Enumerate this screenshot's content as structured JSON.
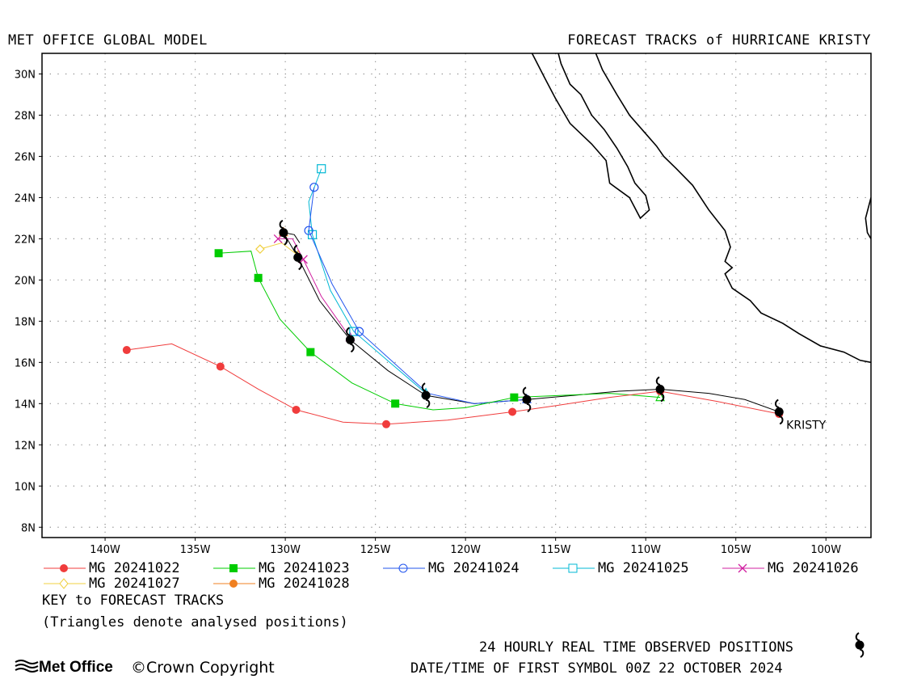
{
  "header": {
    "left": "MET OFFICE GLOBAL MODEL",
    "right": "FORECAST TRACKS of HURRICANE KRISTY"
  },
  "map": {
    "storm_label": "KRISTY",
    "lat_labels": [
      "30N",
      "28N",
      "26N",
      "24N",
      "22N",
      "20N",
      "18N",
      "16N",
      "14N",
      "12N",
      "10N",
      "8N"
    ],
    "lon_labels": [
      "140W",
      "135W",
      "130W",
      "125W",
      "120W",
      "115W",
      "110W",
      "105W",
      "100W"
    ],
    "lat_range": [
      7.5,
      31
    ],
    "lon_range": [
      -143.5,
      -97.5
    ],
    "grid": "dotted",
    "land_color": "#ffffff",
    "coastline_color": "#000000"
  },
  "chart_data": {
    "type": "map_tracks",
    "observed": {
      "name": "24 HOURLY REAL TIME OBSERVED POSITIONS",
      "color": "#000000",
      "points": [
        [
          -102.6,
          13.6
        ],
        [
          -109.2,
          14.7
        ],
        [
          -116.6,
          14.2
        ],
        [
          -122.2,
          14.4
        ],
        [
          -126.4,
          17.1
        ],
        [
          -129.3,
          21.1
        ],
        [
          -130.1,
          22.3
        ]
      ],
      "line": [
        [
          -102.6,
          13.6
        ],
        [
          -104.5,
          14.2
        ],
        [
          -106.5,
          14.5
        ],
        [
          -109.2,
          14.7
        ],
        [
          -111.5,
          14.6
        ],
        [
          -114,
          14.4
        ],
        [
          -116.6,
          14.2
        ],
        [
          -119.5,
          14.0
        ],
        [
          -122.2,
          14.4
        ],
        [
          -124.3,
          15.6
        ],
        [
          -126.4,
          17.1
        ],
        [
          -128.1,
          19.0
        ],
        [
          -129.3,
          21.1
        ],
        [
          -130.1,
          22.3
        ],
        [
          -129.5,
          22.2
        ],
        [
          -129.2,
          21.8
        ]
      ]
    },
    "series": [
      {
        "name": "MG 20241022",
        "color": "#f03c3c",
        "marker": "circle-filled",
        "line": [
          [
            -102.6,
            13.5
          ],
          [
            -106,
            14.1
          ],
          [
            -109.2,
            14.6
          ],
          [
            -112,
            14.3
          ],
          [
            -115,
            13.9
          ],
          [
            -117.4,
            13.6
          ],
          [
            -121,
            13.2
          ],
          [
            -124.4,
            13.0
          ],
          [
            -126.8,
            13.1
          ],
          [
            -129.4,
            13.7
          ],
          [
            -131.5,
            14.7
          ],
          [
            -133.6,
            15.8
          ],
          [
            -136.3,
            16.9
          ],
          [
            -138.8,
            16.6
          ]
        ],
        "markers": [
          [
            -102.6,
            13.5
          ],
          [
            -109.2,
            14.6
          ],
          [
            -117.4,
            13.6
          ],
          [
            -124.4,
            13.0
          ],
          [
            -129.4,
            13.7
          ],
          [
            -133.6,
            15.8
          ],
          [
            -138.8,
            16.6
          ]
        ]
      },
      {
        "name": "MG 20241023",
        "color": "#00cc00",
        "marker": "square-filled",
        "line": [
          [
            -109.2,
            14.3
          ],
          [
            -112,
            14.5
          ],
          [
            -117.3,
            14.3
          ],
          [
            -120,
            13.8
          ],
          [
            -121.8,
            13.7
          ],
          [
            -123.9,
            14.0
          ],
          [
            -126.3,
            15.0
          ],
          [
            -128.6,
            16.5
          ],
          [
            -130.3,
            18.1
          ],
          [
            -131.5,
            20.1
          ],
          [
            -131.9,
            21.4
          ],
          [
            -133.7,
            21.3
          ]
        ],
        "markers": [
          [
            -117.3,
            14.3
          ],
          [
            -123.9,
            14.0
          ],
          [
            -128.6,
            16.5
          ],
          [
            -131.5,
            20.1
          ],
          [
            -133.7,
            21.3
          ]
        ],
        "analysed": [
          [
            -109.2,
            14.3
          ]
        ]
      },
      {
        "name": "MG 20241024",
        "color": "#2255ee",
        "marker": "circle-open",
        "line": [
          [
            -116.6,
            14.2
          ],
          [
            -119.5,
            14.0
          ],
          [
            -122.1,
            14.5
          ],
          [
            -124,
            16
          ],
          [
            -125.9,
            17.5
          ],
          [
            -127.4,
            19.8
          ],
          [
            -128.7,
            22.4
          ],
          [
            -128.4,
            24.5
          ]
        ],
        "markers": [
          [
            -125.9,
            17.5
          ],
          [
            -128.7,
            22.4
          ],
          [
            -128.4,
            24.5
          ]
        ],
        "analysed": [
          [
            -116.6,
            14.2
          ]
        ]
      },
      {
        "name": "MG 20241025",
        "color": "#00b8d4",
        "marker": "square-open",
        "line": [
          [
            -122.2,
            14.5
          ],
          [
            -124.2,
            16.0
          ],
          [
            -126.2,
            17.5
          ],
          [
            -127.5,
            19.5
          ],
          [
            -128.5,
            22.2
          ],
          [
            -128.7,
            23.8
          ],
          [
            -128.3,
            24.7
          ],
          [
            -128.0,
            25.4
          ]
        ],
        "markers": [
          [
            -126.2,
            17.5
          ],
          [
            -128.5,
            22.2
          ],
          [
            -128.0,
            25.4
          ]
        ],
        "analysed": [
          [
            -122.2,
            14.5
          ]
        ]
      },
      {
        "name": "MG 20241026",
        "color": "#d020a0",
        "marker": "x",
        "line": [
          [
            -126.4,
            17.2
          ],
          [
            -128.0,
            19.2
          ],
          [
            -129.0,
            21.0
          ],
          [
            -129.6,
            22.0
          ],
          [
            -130.4,
            22.0
          ]
        ],
        "markers": [
          [
            -129.0,
            21.0
          ],
          [
            -130.4,
            22.0
          ]
        ],
        "analysed": [
          [
            -126.4,
            17.2
          ]
        ]
      },
      {
        "name": "MG 20241027",
        "color": "#f0d040",
        "marker": "diamond-open",
        "line": [
          [
            -129.3,
            21.2
          ],
          [
            -130.2,
            21.8
          ],
          [
            -131.4,
            21.5
          ]
        ],
        "markers": [
          [
            -131.4,
            21.5
          ]
        ],
        "analysed": [
          [
            -129.3,
            21.2
          ]
        ]
      },
      {
        "name": "MG 20241028",
        "color": "#f08020",
        "marker": "circle-filled",
        "line": [
          [
            -130.1,
            22.3
          ]
        ],
        "markers": [],
        "analysed": [
          [
            -130.1,
            22.3
          ]
        ]
      }
    ]
  },
  "legend": {
    "title": "KEY to FORECAST TRACKS",
    "note": "(Triangles denote analysed positions)"
  },
  "footer": {
    "observed_label": "24 HOURLY REAL TIME OBSERVED POSITIONS",
    "datetime": "DATE/TIME OF FIRST SYMBOL 00Z 22 OCTOBER 2024",
    "logo": "Met Office",
    "copyright": "Crown Copyright"
  }
}
